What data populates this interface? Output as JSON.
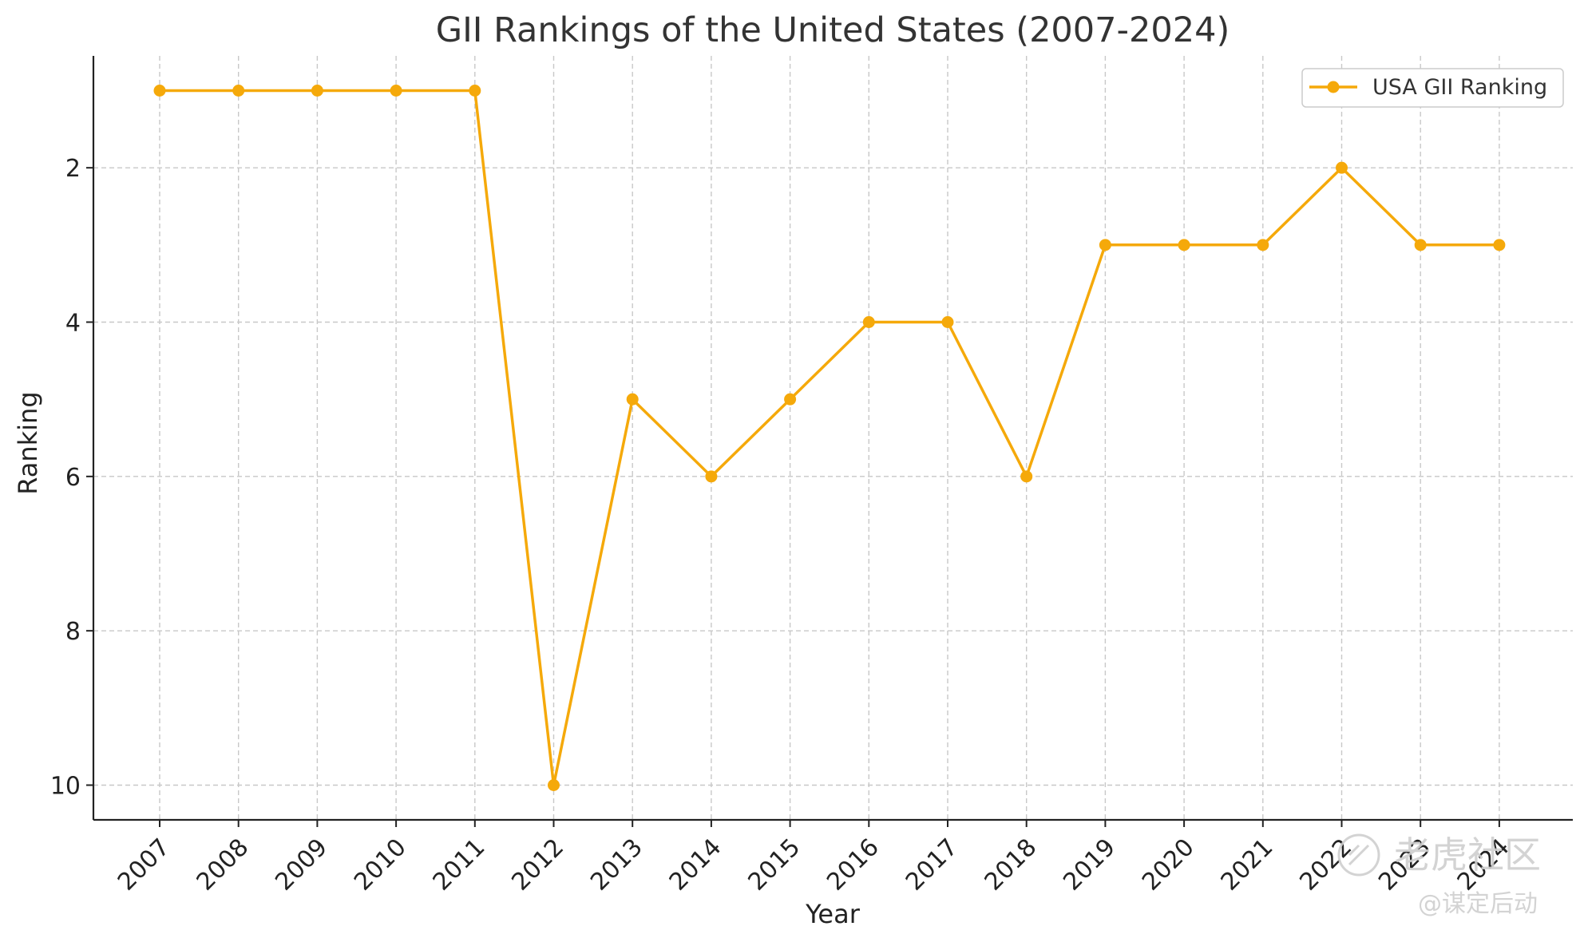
{
  "chart_data": {
    "type": "line",
    "title": "GII Rankings of the United States (2007-2024)",
    "xlabel": "Year",
    "ylabel": "Ranking",
    "x": [
      "2007",
      "2008",
      "2009",
      "2010",
      "2011",
      "2012",
      "2013",
      "2014",
      "2015",
      "2016",
      "2017",
      "2018",
      "2019",
      "2020",
      "2021",
      "2022",
      "2023",
      "2024"
    ],
    "series": [
      {
        "name": "USA GII Ranking",
        "color": "#F5A90A",
        "marker": "circle",
        "values": [
          1,
          1,
          1,
          1,
          1,
          10,
          5,
          6,
          5,
          4,
          4,
          6,
          3,
          3,
          3,
          2,
          3,
          3
        ]
      }
    ],
    "y_inverted": true,
    "ylim": [
      10.45,
      0.55
    ],
    "y_ticks": [
      "2",
      "4",
      "6",
      "8",
      "10"
    ],
    "grid": true,
    "grid_style": "dashed",
    "legend_position": "top-right",
    "x_tick_rotation": 45
  },
  "watermark": {
    "icon": "circle-logo-icon",
    "text": "老虎社区",
    "subtext": "@谋定后动"
  }
}
